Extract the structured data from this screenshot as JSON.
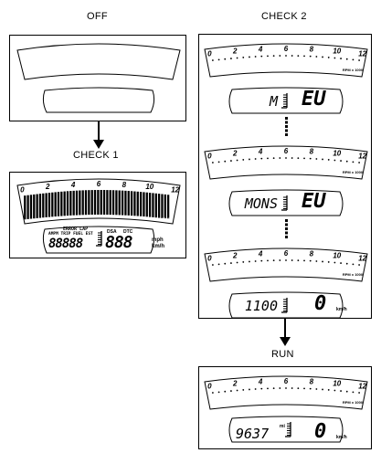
{
  "labels": {
    "off": "OFF",
    "check1": "CHECK 1",
    "check2": "CHECK 2",
    "run": "RUN"
  },
  "tach": {
    "ticks": [
      "0",
      "2",
      "4",
      "6",
      "8",
      "10",
      "12"
    ],
    "unit": "RPM x 1000"
  },
  "check1": {
    "indicators_top": "ERROR LAP",
    "indicators_bottom": "AMPM TRIP FUEL EST",
    "odo_digits": "88888",
    "mid_labels": [
      "DSA",
      "DTC"
    ],
    "speed_digits": "888",
    "speed_units": [
      "mph",
      "km/h"
    ]
  },
  "check2": {
    "screens": [
      {
        "left": "M",
        "right": "EU",
        "unit": ""
      },
      {
        "left": "MONS",
        "right": "EU",
        "unit": ""
      },
      {
        "left": "1100",
        "right": "0",
        "unit": "km/h"
      }
    ]
  },
  "run": {
    "left": "9637",
    "unit_small": "mi",
    "right": "0",
    "unit": "km/h"
  },
  "colors": {
    "line": "#000000",
    "bg": "#ffffff",
    "bar": "#000000"
  }
}
